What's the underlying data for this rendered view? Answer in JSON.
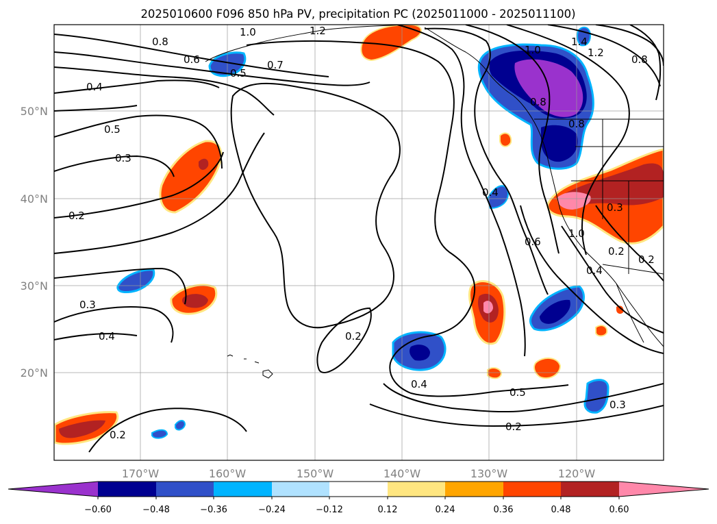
{
  "title": "2025010600 F096 850 hPa PV, precipitation PC (2025011000 - 2025011100)",
  "lat_labels": [
    "50°N",
    "40°N",
    "30°N",
    "20°N"
  ],
  "lon_labels": [
    "170°W",
    "160°W",
    "150°W",
    "140°W",
    "130°W",
    "120°W"
  ],
  "colorbar": {
    "tick_labels": [
      "−0.60",
      "−0.48",
      "−0.36",
      "−0.24",
      "−0.12",
      "0.12",
      "0.24",
      "0.36",
      "0.48",
      "0.60"
    ],
    "colors": [
      "#9a32cd",
      "#000090",
      "#3050c8",
      "#00b4ff",
      "#b0e2ff",
      "#ffffff",
      "#ffe680",
      "#ffa500",
      "#ff4500",
      "#b22222",
      "#ff88aa"
    ]
  },
  "contour_labels": [
    "1.0",
    "1.2",
    "0.8",
    "0.6",
    "0.7",
    "0.5",
    "0.4",
    "0.5",
    "0.3",
    "0.2",
    "0.3",
    "0.4",
    "1.0",
    "1.4",
    "1.2",
    "0.8",
    "0.8",
    "0.8",
    "0.4",
    "0.6",
    "1.0",
    "0.3",
    "0.2",
    "0.2",
    "0.4",
    "0.2",
    "0.4",
    "0.5",
    "0.3",
    "0.2",
    "0.2"
  ]
}
